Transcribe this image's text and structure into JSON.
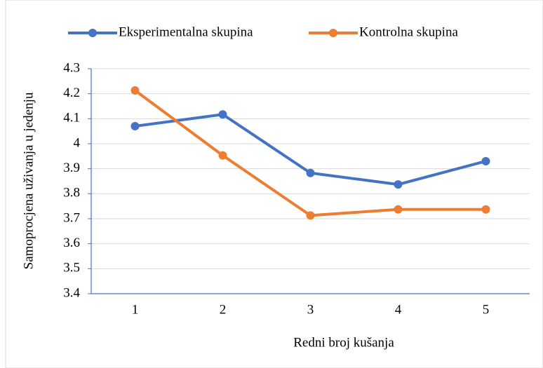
{
  "chart_data": {
    "type": "line",
    "categories": [
      "1",
      "2",
      "3",
      "4",
      "5"
    ],
    "series": [
      {
        "name": "Eksperimentalna skupina",
        "color": "#4472c4",
        "values": [
          4.07,
          4.117,
          3.883,
          3.837,
          3.93
        ]
      },
      {
        "name": "Kontrolna skupina",
        "color": "#ed7d31",
        "values": [
          4.213,
          3.953,
          3.713,
          3.737,
          3.737
        ]
      }
    ],
    "x_label": "Redni broj kušanja",
    "y_label": "Samoprocjena uživanja u jedenju",
    "ylim": [
      3.4,
      4.3
    ],
    "yticks": [
      3.4,
      3.5,
      3.6,
      3.7,
      3.8,
      3.9,
      4,
      4.1,
      4.2,
      4.3
    ],
    "grid": true,
    "legend": "top"
  }
}
